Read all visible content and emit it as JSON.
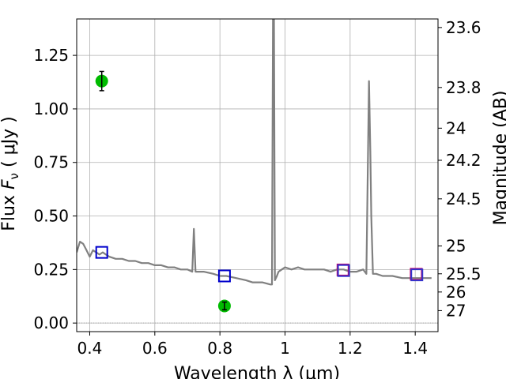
{
  "chart_data": {
    "type": "line",
    "xlabel": "Wavelength  λ (μm)",
    "ylabel": "Flux  F_ν  ( μJy )",
    "ylabel_parts": {
      "pre": "Flux  ",
      "sym": "F",
      "sub": "ν",
      "post": "  ( μJy )"
    },
    "y2label": "Magnitude (AB)",
    "xlim": [
      0.36,
      1.47
    ],
    "ylim": [
      -0.04,
      1.42
    ],
    "grid": true,
    "x_ticks": [
      {
        "value": 0.4,
        "label": "0.4"
      },
      {
        "value": 0.6,
        "label": "0.6"
      },
      {
        "value": 0.8,
        "label": "0.8"
      },
      {
        "value": 1.0,
        "label": "1"
      },
      {
        "value": 1.2,
        "label": "1.2"
      },
      {
        "value": 1.4,
        "label": "1.4"
      }
    ],
    "y_ticks": [
      {
        "value": 0.0,
        "label": "0.00"
      },
      {
        "value": 0.25,
        "label": "0.25"
      },
      {
        "value": 0.5,
        "label": "0.50"
      },
      {
        "value": 0.75,
        "label": "0.75"
      },
      {
        "value": 1.0,
        "label": "1.00"
      },
      {
        "value": 1.25,
        "label": "1.25"
      }
    ],
    "y2_ticks": [
      {
        "flux": 1.38,
        "label": "23.6"
      },
      {
        "flux": 1.1,
        "label": "23.8"
      },
      {
        "flux": 0.91,
        "label": "24"
      },
      {
        "flux": 0.76,
        "label": "24.2"
      },
      {
        "flux": 0.58,
        "label": "24.5"
      },
      {
        "flux": 0.36,
        "label": "25"
      },
      {
        "flux": 0.23,
        "label": "25.5"
      },
      {
        "flux": 0.145,
        "label": "26"
      },
      {
        "flux": 0.058,
        "label": "27"
      }
    ],
    "series": [
      {
        "role": "model-sed",
        "color": "#808080",
        "x": [
          0.36,
          0.37,
          0.38,
          0.39,
          0.4,
          0.41,
          0.42,
          0.43,
          0.44,
          0.45,
          0.46,
          0.48,
          0.5,
          0.52,
          0.54,
          0.56,
          0.58,
          0.6,
          0.62,
          0.64,
          0.66,
          0.68,
          0.7,
          0.715,
          0.72,
          0.725,
          0.73,
          0.75,
          0.78,
          0.8,
          0.82,
          0.85,
          0.88,
          0.9,
          0.93,
          0.955,
          0.96,
          0.963,
          0.966,
          0.969,
          0.972,
          0.975,
          0.98,
          0.99,
          1.0,
          1.02,
          1.04,
          1.06,
          1.08,
          1.1,
          1.12,
          1.14,
          1.16,
          1.18,
          1.2,
          1.22,
          1.24,
          1.245,
          1.25,
          1.255,
          1.258,
          1.262,
          1.265,
          1.27,
          1.275,
          1.28,
          1.3,
          1.33,
          1.36,
          1.4,
          1.43,
          1.45
        ],
        "y": [
          0.33,
          0.38,
          0.37,
          0.34,
          0.31,
          0.34,
          0.33,
          0.32,
          0.33,
          0.32,
          0.31,
          0.3,
          0.3,
          0.29,
          0.29,
          0.28,
          0.28,
          0.27,
          0.27,
          0.26,
          0.26,
          0.25,
          0.25,
          0.24,
          0.44,
          0.24,
          0.24,
          0.24,
          0.23,
          0.22,
          0.22,
          0.21,
          0.2,
          0.19,
          0.19,
          0.18,
          0.18,
          1.42,
          1.42,
          0.2,
          0.21,
          0.22,
          0.24,
          0.25,
          0.26,
          0.25,
          0.26,
          0.25,
          0.25,
          0.25,
          0.25,
          0.24,
          0.25,
          0.25,
          0.24,
          0.24,
          0.25,
          0.24,
          0.23,
          0.8,
          1.13,
          0.8,
          0.5,
          0.23,
          0.23,
          0.23,
          0.22,
          0.22,
          0.21,
          0.21,
          0.21,
          0.21
        ]
      }
    ],
    "green_points": [
      {
        "x": 0.437,
        "y": 1.13,
        "yerr": 0.045,
        "color": "#00bb00"
      },
      {
        "x": 0.814,
        "y": 0.08,
        "yerr": 0.018,
        "color": "#00bb00"
      }
    ],
    "squares": [
      {
        "x": 0.437,
        "y": 0.33,
        "color": "#0000cc"
      },
      {
        "x": 0.814,
        "y": 0.22,
        "color": "#0000cc"
      },
      {
        "x": 1.18,
        "y": 0.245,
        "color": "#cc0066"
      },
      {
        "x": 1.18,
        "y": 0.245,
        "color": "#3333cc"
      },
      {
        "x": 1.405,
        "y": 0.225,
        "color": "#cc0066"
      },
      {
        "x": 1.405,
        "y": 0.225,
        "color": "#3333cc"
      }
    ]
  }
}
